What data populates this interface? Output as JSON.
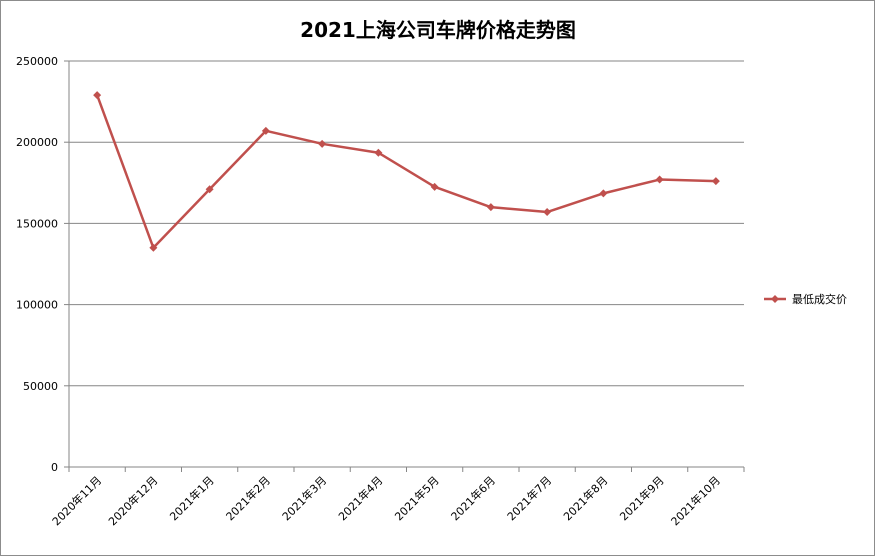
{
  "chart_data": {
    "type": "line",
    "title": "2021上海公司车牌价格走势图",
    "xlabel": "",
    "ylabel": "",
    "categories": [
      "2020年11月",
      "2020年12月",
      "2021年1月",
      "2021年2月",
      "2021年3月",
      "2021年4月",
      "2021年5月",
      "2021年6月",
      "2021年7月",
      "2021年8月",
      "2021年9月",
      "2021年10月"
    ],
    "series": [
      {
        "name": "最低成交价",
        "values": [
          229000,
          135000,
          171000,
          207000,
          199000,
          193500,
          172500,
          160000,
          157000,
          168500,
          177000,
          176000
        ]
      }
    ],
    "ylim": [
      0,
      250000
    ],
    "yticks": [
      "0",
      "50000",
      "100000",
      "150000",
      "200000",
      "250000"
    ],
    "grid": true,
    "legend": "right",
    "colors": {
      "series": "#C0504D",
      "grid": "#868686",
      "axis": "#868686"
    }
  }
}
